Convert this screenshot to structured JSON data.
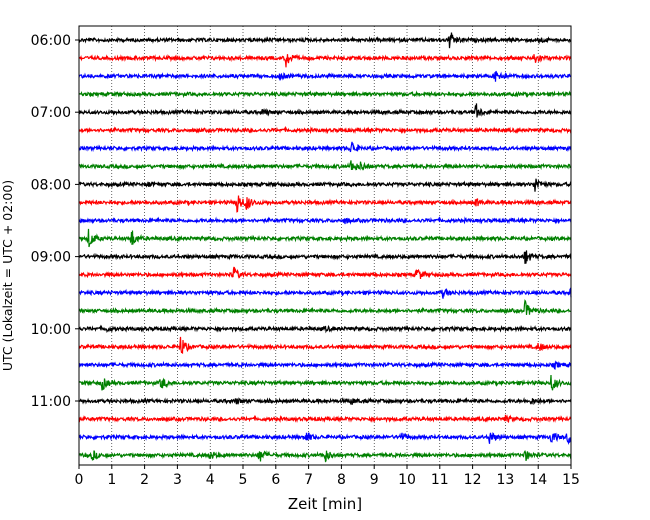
{
  "chart_data": {
    "type": "line",
    "title": "",
    "xlabel": "Zeit  [min]",
    "ylabel": "UTC (Lokalzeit = UTC + 02:00)",
    "xlim": [
      0,
      15
    ],
    "x_ticks": [
      0,
      1,
      2,
      3,
      4,
      5,
      6,
      7,
      8,
      9,
      10,
      11,
      12,
      13,
      14,
      15
    ],
    "x_tick_labels": [
      "0",
      "1",
      "2",
      "3",
      "4",
      "5",
      "6",
      "7",
      "8",
      "9",
      "10",
      "11",
      "12",
      "13",
      "14",
      "15"
    ],
    "y_tick_labels": [
      "06:00",
      "07:00",
      "08:00",
      "09:00",
      "10:00",
      "11:00"
    ],
    "y_tick_rows": [
      0,
      4,
      8,
      12,
      16,
      20
    ],
    "grid": "vertical dotted",
    "row_interval_min": 15,
    "colors": [
      "#000000",
      "#ff0000",
      "#0000ff",
      "#008000"
    ],
    "rows": [
      {
        "start": "06:00",
        "color": "#000000",
        "events": [
          {
            "t": 11.3,
            "a": 1.0
          },
          {
            "t": 14.0,
            "a": 0.35
          }
        ]
      },
      {
        "start": "06:15",
        "color": "#ff0000",
        "events": [
          {
            "t": 6.3,
            "a": 1.1
          },
          {
            "t": 13.9,
            "a": 0.8
          }
        ]
      },
      {
        "start": "06:30",
        "color": "#0000ff",
        "events": [
          {
            "t": 6.1,
            "a": 0.5
          },
          {
            "t": 12.7,
            "a": 1.0
          }
        ]
      },
      {
        "start": "06:45",
        "color": "#008000",
        "events": []
      },
      {
        "start": "07:00",
        "color": "#000000",
        "events": [
          {
            "t": 5.6,
            "a": 0.3
          },
          {
            "t": 12.1,
            "a": 0.9
          }
        ]
      },
      {
        "start": "07:15",
        "color": "#ff0000",
        "events": []
      },
      {
        "start": "07:30",
        "color": "#0000ff",
        "events": [
          {
            "t": 8.3,
            "a": 0.9
          }
        ]
      },
      {
        "start": "07:45",
        "color": "#008000",
        "events": [
          {
            "t": 8.3,
            "a": 0.8
          },
          {
            "t": 8.6,
            "a": 0.5
          }
        ]
      },
      {
        "start": "08:00",
        "color": "#000000",
        "events": [
          {
            "t": 13.9,
            "a": 1.0
          },
          {
            "t": 2.1,
            "a": 0.25
          }
        ]
      },
      {
        "start": "08:15",
        "color": "#ff0000",
        "events": [
          {
            "t": 4.8,
            "a": 1.4
          },
          {
            "t": 5.1,
            "a": 0.8
          },
          {
            "t": 12.1,
            "a": 0.4
          }
        ]
      },
      {
        "start": "08:30",
        "color": "#0000ff",
        "events": [
          {
            "t": 8.1,
            "a": 0.25
          }
        ]
      },
      {
        "start": "08:45",
        "color": "#008000",
        "events": [
          {
            "t": 0.3,
            "a": 1.2
          },
          {
            "t": 1.6,
            "a": 1.0
          }
        ]
      },
      {
        "start": "09:00",
        "color": "#000000",
        "events": [
          {
            "t": 13.6,
            "a": 0.9
          }
        ]
      },
      {
        "start": "09:15",
        "color": "#ff0000",
        "events": [
          {
            "t": 4.7,
            "a": 0.9
          },
          {
            "t": 10.3,
            "a": 0.8
          }
        ]
      },
      {
        "start": "09:30",
        "color": "#0000ff",
        "events": [
          {
            "t": 11.1,
            "a": 0.5
          },
          {
            "t": 15.0,
            "a": 0.8
          }
        ]
      },
      {
        "start": "09:45",
        "color": "#008000",
        "events": [
          {
            "t": 13.6,
            "a": 1.0
          }
        ]
      },
      {
        "start": "10:00",
        "color": "#000000",
        "events": [
          {
            "t": 0.8,
            "a": 0.3
          },
          {
            "t": 7.5,
            "a": 0.2
          }
        ]
      },
      {
        "start": "10:15",
        "color": "#ff0000",
        "events": [
          {
            "t": 3.1,
            "a": 1.2
          },
          {
            "t": 14.0,
            "a": 0.5
          }
        ]
      },
      {
        "start": "10:30",
        "color": "#0000ff",
        "events": [
          {
            "t": 14.5,
            "a": 0.3
          }
        ]
      },
      {
        "start": "10:45",
        "color": "#008000",
        "events": [
          {
            "t": 0.7,
            "a": 0.8
          },
          {
            "t": 2.5,
            "a": 0.7
          },
          {
            "t": 14.4,
            "a": 1.0
          }
        ]
      },
      {
        "start": "11:00",
        "color": "#000000",
        "events": [
          {
            "t": 4.8,
            "a": 0.3
          },
          {
            "t": 8.3,
            "a": 0.3
          },
          {
            "t": 13.8,
            "a": 0.3
          }
        ]
      },
      {
        "start": "11:15",
        "color": "#ff0000",
        "events": [
          {
            "t": 13.0,
            "a": 0.3
          }
        ]
      },
      {
        "start": "11:30",
        "color": "#0000ff",
        "events": [
          {
            "t": 6.9,
            "a": 0.7
          },
          {
            "t": 9.8,
            "a": 0.5
          },
          {
            "t": 12.5,
            "a": 0.9
          },
          {
            "t": 14.4,
            "a": 0.7
          },
          {
            "t": 14.9,
            "a": 0.8
          }
        ]
      },
      {
        "start": "11:45",
        "color": "#008000",
        "events": [
          {
            "t": 0.4,
            "a": 0.6
          },
          {
            "t": 4.0,
            "a": 0.5
          },
          {
            "t": 5.5,
            "a": 0.8
          },
          {
            "t": 7.5,
            "a": 0.7
          },
          {
            "t": 13.6,
            "a": 0.6
          }
        ]
      }
    ]
  }
}
